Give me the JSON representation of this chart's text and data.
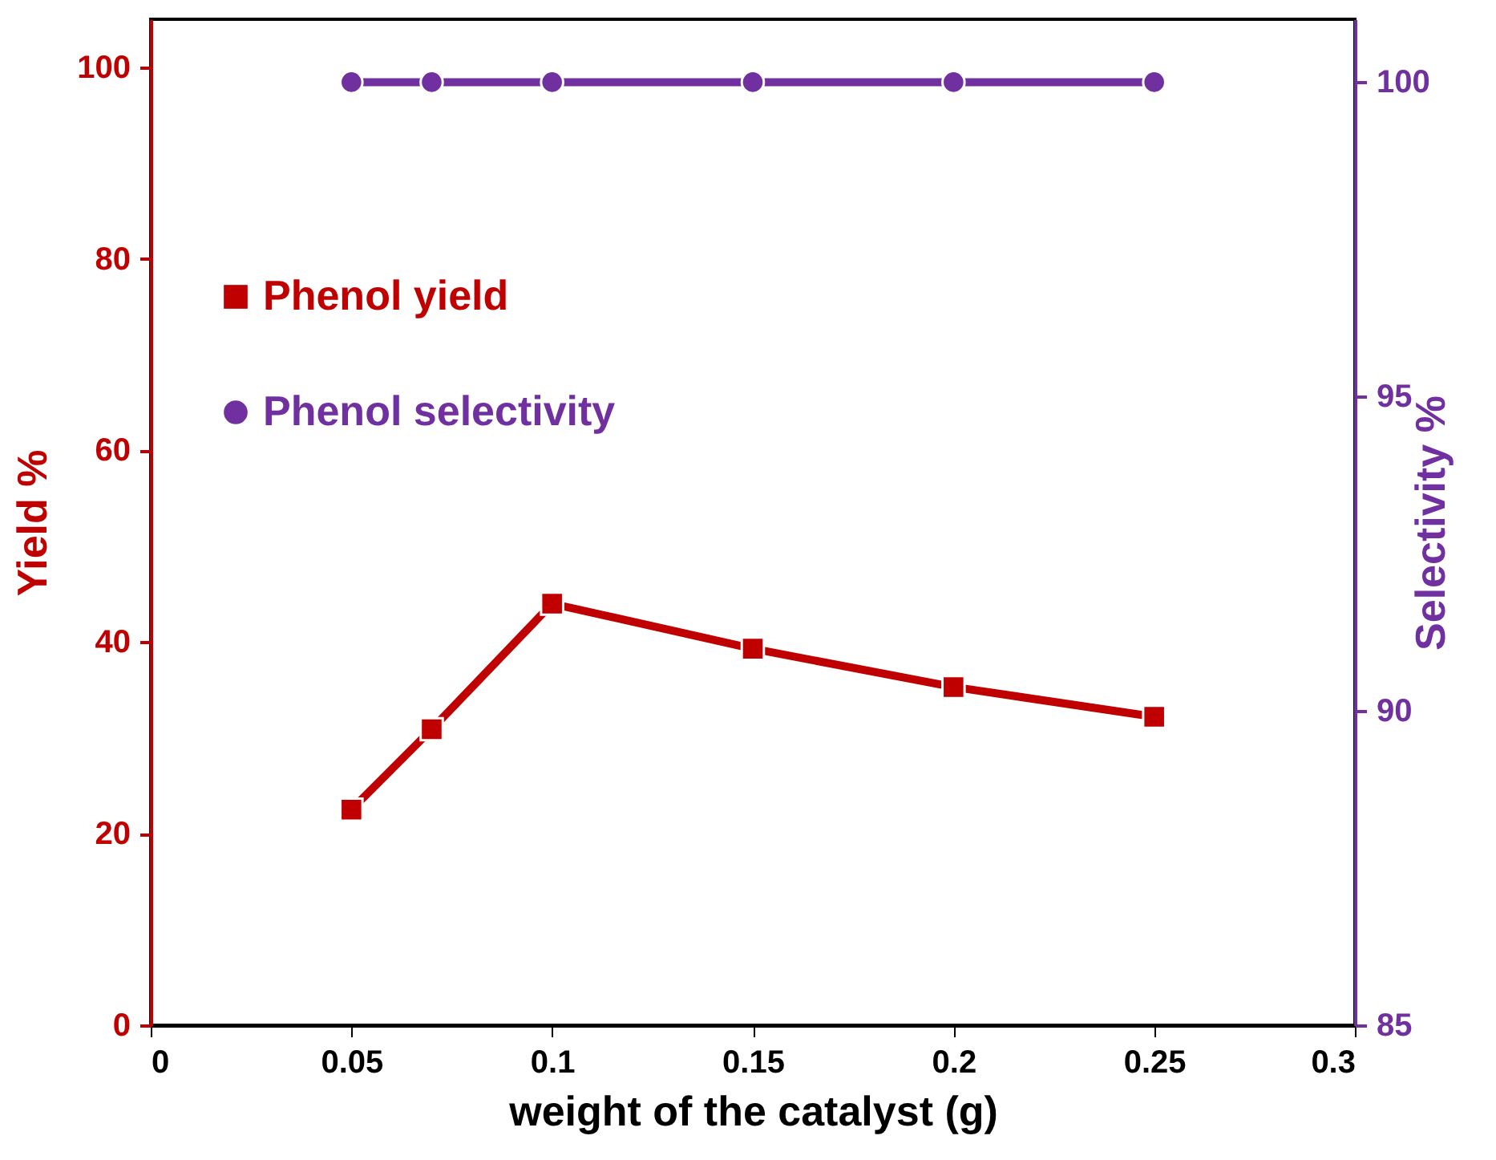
{
  "chart_data": {
    "type": "line",
    "xlabel": "weight of the catalyst (g)",
    "ylabel": "Yield %",
    "y2label": "Selectivity %",
    "x": [
      0.05,
      0.07,
      0.1,
      0.15,
      0.2,
      0.25
    ],
    "series": [
      {
        "name": "Phenol yield",
        "color": "#c00000",
        "marker": "square",
        "values": [
          22.5,
          30.9,
          44.0,
          39.3,
          35.3,
          32.2
        ]
      },
      {
        "name": "Phenol selectivity",
        "color": "#7030a0",
        "marker": "circle",
        "axis": "y2",
        "values": [
          100,
          100,
          100,
          100,
          100,
          100
        ]
      }
    ],
    "xlim": [
      0,
      0.3
    ],
    "xticks": [
      0,
      0.05,
      0.1,
      0.15,
      0.2,
      0.25,
      0.3
    ],
    "ylim": [
      0,
      105
    ],
    "yticks": [
      0,
      20,
      40,
      60,
      80,
      100
    ],
    "y2lim": [
      85,
      101
    ],
    "y2ticks": [
      85,
      90,
      95,
      100
    ],
    "legend": "top left",
    "grid": false,
    "line_style": "solid"
  }
}
